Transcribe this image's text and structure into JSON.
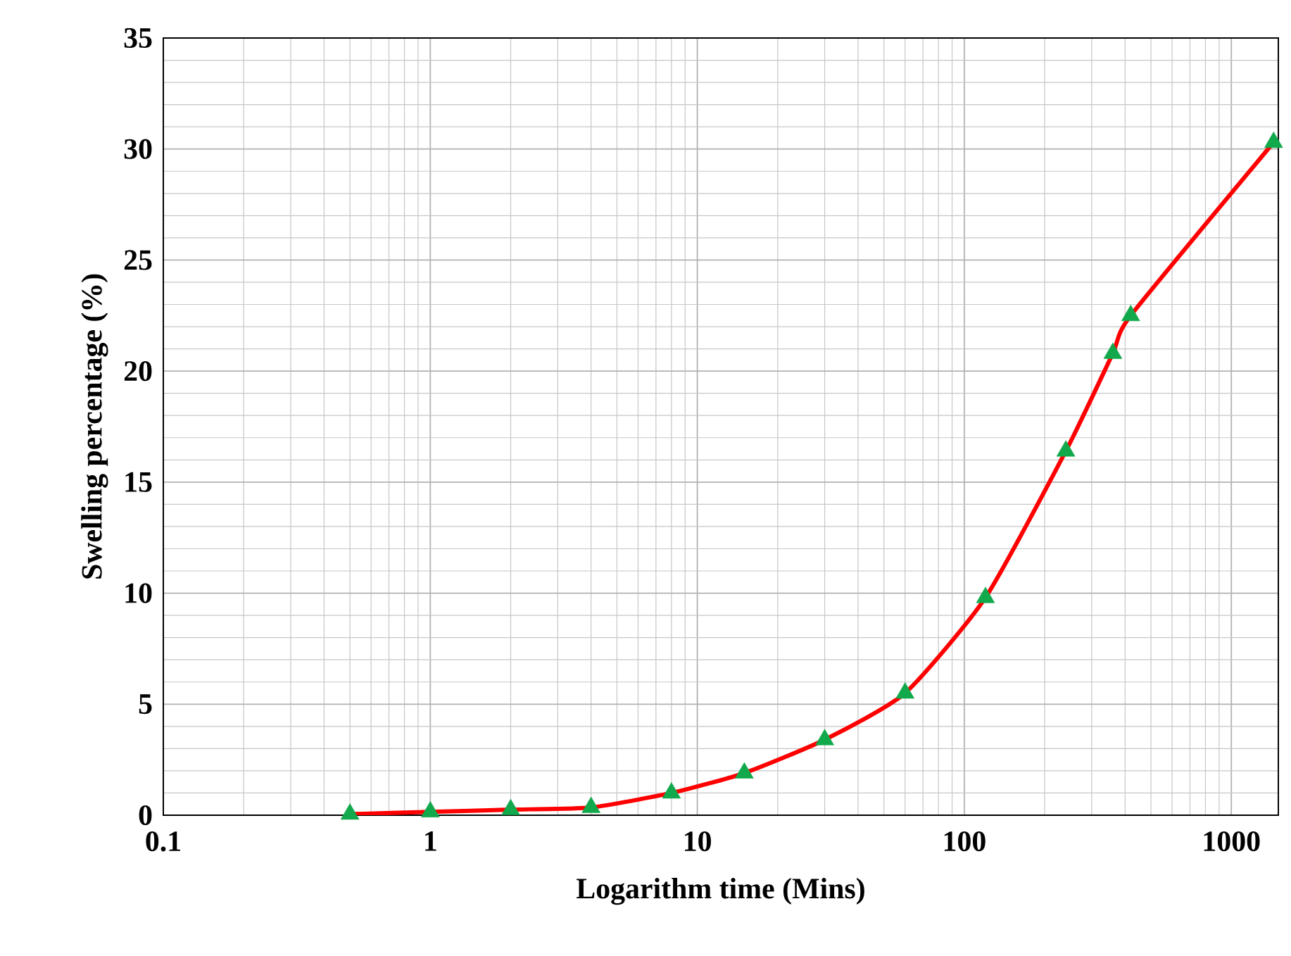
{
  "chart_data": {
    "type": "line",
    "xlabel": "Logarithm time (Mins)",
    "ylabel": "Swelling percentage  (%)",
    "log": "x",
    "grid": true,
    "marker": "triangle",
    "line_style": "solid",
    "xlim": [
      0.1,
      1500
    ],
    "xticks": [
      0.1,
      1,
      10,
      100,
      1000
    ],
    "ylim": [
      0,
      35
    ],
    "yticks": [
      0,
      5,
      10,
      15,
      20,
      25,
      30,
      35
    ],
    "x": [
      0.5,
      1,
      2,
      4,
      8,
      15,
      30,
      60,
      120,
      240,
      360,
      420,
      1440
    ],
    "series": [
      {
        "color": "#ff0000",
        "colors": [
          "#12a84c",
          "#12a84c",
          "#12a84c",
          "#12a84c",
          "#12a84c",
          "#12a84c",
          "#12a84c",
          "#12a84c",
          "#12a84c",
          "#12a84c",
          "#12a84c",
          "#12a84c",
          "#12a84c"
        ],
        "values": [
          0.05,
          0.15,
          0.25,
          0.35,
          1.0,
          1.9,
          3.4,
          5.5,
          9.8,
          16.4,
          20.8,
          22.5,
          30.3
        ]
      }
    ]
  }
}
